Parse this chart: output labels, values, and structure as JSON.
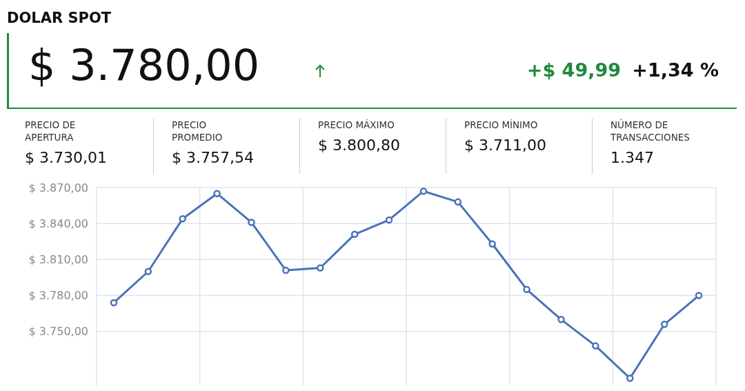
{
  "chart_data": {
    "type": "line",
    "title": "DOLAR SPOT",
    "annotations": [
      "$ 3.780,00",
      "+$ 49,99",
      "+1,34 %",
      "PRECIO DE APERTURA",
      "$ 3.730,01",
      "PRECIO PROMEDIO",
      "$ 3.757,54",
      "PRECIO MÁXIMO",
      "$ 3.800,80",
      "PRECIO MÍNIMO",
      "$ 3.711,00",
      "NÚMERO DE TRANSACCIONES",
      "1.347"
    ],
    "categories": [
      null,
      null,
      null,
      null,
      null,
      null,
      null,
      null,
      null,
      null,
      null,
      null,
      null,
      null,
      null,
      null,
      null,
      null
    ],
    "series": [
      {
        "color": "#4a72b8",
        "values": [
          3774,
          3800,
          3844,
          3865,
          3841,
          3801,
          3803,
          3831,
          3843,
          3867,
          3858,
          3823,
          3785,
          3760,
          3738,
          3711,
          3756,
          3780
        ]
      }
    ],
    "ylim": [
      3705,
      3870
    ],
    "yticks": [
      {
        "value": 3750,
        "label": "$ 3.750,00"
      },
      {
        "value": 3780,
        "label": "$ 3.780,00"
      },
      {
        "value": 3810,
        "label": "$ 3.810,00"
      },
      {
        "value": 3840,
        "label": "$ 3.840,00"
      },
      {
        "value": 3870,
        "label": "$ 3.870,00"
      }
    ],
    "tick_labels": "y",
    "grid": true,
    "marker": "circle",
    "line_style": "solid"
  }
}
